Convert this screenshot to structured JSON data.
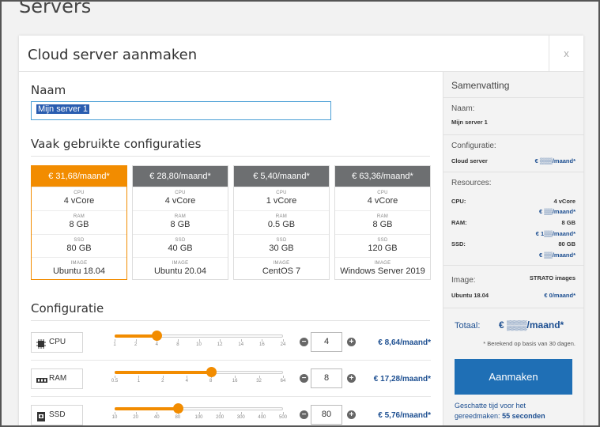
{
  "page": {
    "title": "Servers"
  },
  "modal": {
    "title": "Cloud server aanmaken",
    "close_label": "x"
  },
  "name_section": {
    "title": "Naam",
    "value": "Mijn server 1"
  },
  "presets_section": {
    "title": "Vaak gebruikte configuraties",
    "presets": [
      {
        "price": "€ 31,68/maand*",
        "cpu": "4 vCore",
        "ram": "8 GB",
        "ssd": "80 GB",
        "image": "Ubuntu 18.04",
        "active": true
      },
      {
        "price": "€ 28,80/maand*",
        "cpu": "4 vCore",
        "ram": "8 GB",
        "ssd": "40 GB",
        "image": "Ubuntu 20.04",
        "active": false
      },
      {
        "price": "€ 5,40/maand*",
        "cpu": "1 vCore",
        "ram": "0.5 GB",
        "ssd": "30 GB",
        "image": "CentOS 7",
        "active": false
      },
      {
        "price": "€ 63,36/maand*",
        "cpu": "4 vCore",
        "ram": "8 GB",
        "ssd": "120 GB",
        "image": "Windows Server 2019",
        "active": false
      }
    ],
    "spec_labels": {
      "cpu": "CPU",
      "ram": "RAM",
      "ssd": "SSD",
      "image": "IMAGE"
    }
  },
  "config_section": {
    "title": "Configuratie",
    "rows": [
      {
        "label": "CPU",
        "icon": "cpu-icon",
        "ticks": [
          "1",
          "2",
          "4",
          "8",
          "10",
          "12",
          "14",
          "16",
          "24"
        ],
        "value": "4",
        "slider_fraction": 0.25,
        "price": "€ 8,64/maand*"
      },
      {
        "label": "RAM",
        "icon": "ram-icon",
        "ticks": [
          "0.5",
          "1",
          "2",
          "4",
          "8",
          "16",
          "32",
          "64"
        ],
        "value": "8",
        "slider_fraction": 0.571,
        "price": "€ 17,28/maand*"
      },
      {
        "label": "SSD",
        "icon": "ssd-icon",
        "ticks": [
          "10",
          "20",
          "40",
          "80",
          "100",
          "200",
          "300",
          "400",
          "500"
        ],
        "value": "80",
        "slider_fraction": 0.375,
        "price": "€ 5,76/maand*"
      }
    ]
  },
  "summary": {
    "title": "Samenvatting",
    "name_label": "Naam:",
    "name_value": "Mijn server 1",
    "config_label": "Configuratie:",
    "config_item": "Cloud server",
    "config_price": "€ ▒▒▒/maand*",
    "resources_label": "Resources:",
    "cpu_label": "CPU:",
    "cpu_value": "4 vCore",
    "cpu_price": "€ ▒▒/maand*",
    "ram_label": "RAM:",
    "ram_value": "8 GB",
    "ram_price": "€ 1▒▒/maand*",
    "ssd_label": "SSD:",
    "ssd_value": "80 GB",
    "ssd_price": "€ ▒▒/maand*",
    "image_label": "Image:",
    "image_provider": "STRATO images",
    "image_value": "Ubuntu 18.04",
    "image_price": "€ 0/maand*",
    "total_label": "Totaal:",
    "total_value": "€ ▒▒▒/maand*",
    "total_note": "* Berekend op basis van 30 dagen.",
    "create_button": "Aanmaken",
    "eta_text": "Geschatte tijd voor het gereedmaken:",
    "eta_value": "55 seconden"
  },
  "colors": {
    "accent": "#f28c00",
    "primary": "#1f6fb5",
    "price": "#1d4f91"
  }
}
